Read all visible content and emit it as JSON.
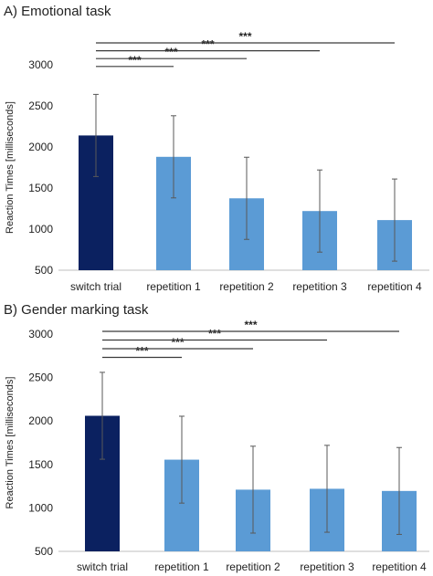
{
  "chart_data": [
    {
      "type": "bar",
      "title": "A) Emotional task",
      "ylabel": "Reaction Times [milliseconds]",
      "xlabel": "",
      "ylim": [
        500,
        3000
      ],
      "yticks": [
        500,
        1000,
        1500,
        2000,
        2500,
        3000
      ],
      "grid": false,
      "categories": [
        "switch trial",
        "repetition 1",
        "repetition 2",
        "repetition 3",
        "repetition 4"
      ],
      "values": [
        2140,
        1880,
        1375,
        1220,
        1110
      ],
      "error": [
        500,
        500,
        500,
        500,
        500
      ],
      "bar_colors": [
        "#0b2160",
        "#5b9bd5",
        "#5b9bd5",
        "#5b9bd5",
        "#5b9bd5"
      ],
      "significance": [
        {
          "from": "switch trial",
          "to": "repetition 1",
          "label": "***"
        },
        {
          "from": "switch trial",
          "to": "repetition 2",
          "label": "***"
        },
        {
          "from": "switch trial",
          "to": "repetition 3",
          "label": "***"
        },
        {
          "from": "switch trial",
          "to": "repetition 4",
          "label": "***"
        }
      ]
    },
    {
      "type": "bar",
      "title": "B) Gender marking task",
      "ylabel": "Reaction Times [milliseconds]",
      "xlabel": "",
      "ylim": [
        500,
        3000
      ],
      "yticks": [
        500,
        1000,
        1500,
        2000,
        2500,
        3000
      ],
      "grid": false,
      "categories": [
        "switch trial",
        "repetition 1",
        "repetition 2",
        "repetition 3",
        "repetition 4"
      ],
      "values": [
        2060,
        1555,
        1210,
        1220,
        1195
      ],
      "error": [
        500,
        500,
        500,
        500,
        500
      ],
      "bar_colors": [
        "#0b2160",
        "#5b9bd5",
        "#5b9bd5",
        "#5b9bd5",
        "#5b9bd5"
      ],
      "significance": [
        {
          "from": "switch trial",
          "to": "repetition 1",
          "label": "***"
        },
        {
          "from": "switch trial",
          "to": "repetition 2",
          "label": "***"
        },
        {
          "from": "switch trial",
          "to": "repetition 3",
          "label": "***"
        },
        {
          "from": "switch trial",
          "to": "repetition 4",
          "label": "***"
        }
      ]
    }
  ]
}
